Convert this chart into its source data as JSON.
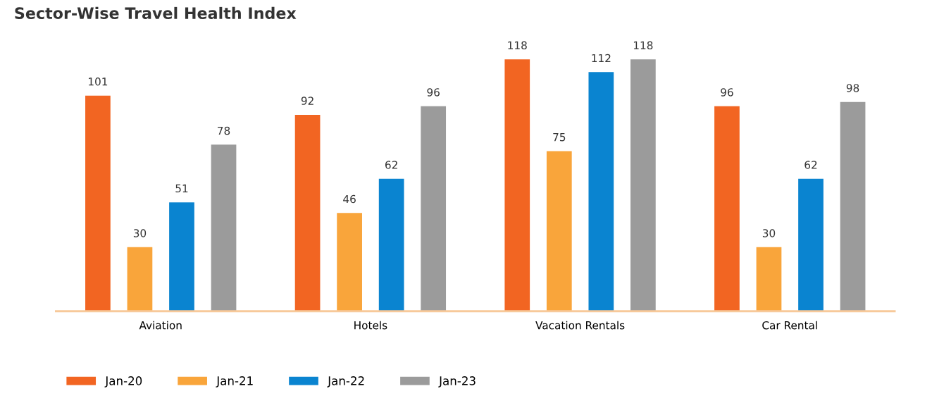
{
  "chart_data": {
    "type": "bar",
    "title": "Sector-Wise Travel Health Index",
    "categories": [
      "Aviation",
      "Hotels",
      "Vacation Rentals",
      "Car Rental"
    ],
    "series": [
      {
        "name": "Jan-20",
        "color": "#f26522",
        "values": [
          101,
          92,
          118,
          96
        ]
      },
      {
        "name": "Jan-21",
        "color": "#f9a53b",
        "values": [
          30,
          46,
          75,
          30
        ]
      },
      {
        "name": "Jan-22",
        "color": "#0a84d0",
        "values": [
          51,
          62,
          112,
          62
        ]
      },
      {
        "name": "Jan-23",
        "color": "#9b9b9b",
        "values": [
          78,
          96,
          118,
          98
        ]
      }
    ],
    "data_labels": true,
    "legend": "bottom left",
    "grid": false
  }
}
